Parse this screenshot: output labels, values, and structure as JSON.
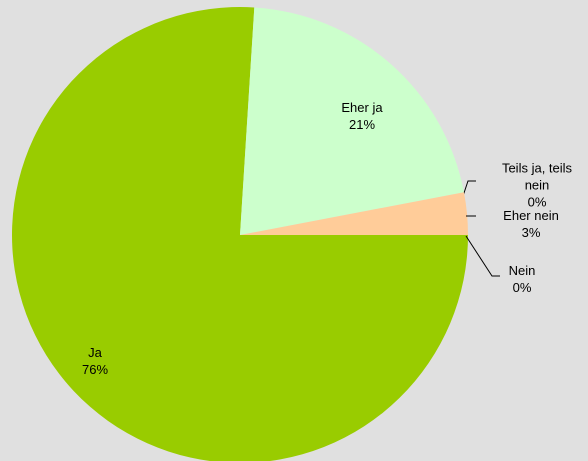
{
  "chart_data": {
    "type": "pie",
    "categories": [
      "Ja",
      "Eher ja",
      "Teils ja, teils nein",
      "Eher nein",
      "Nein"
    ],
    "values": [
      76,
      21,
      0,
      3,
      0
    ],
    "value_labels": [
      "76%",
      "21%",
      "0%",
      "3%",
      "0%"
    ],
    "colors": [
      "#99cc00",
      "#ccffcc",
      "#ffff99",
      "#ffcc99",
      "#ff9966"
    ]
  }
}
